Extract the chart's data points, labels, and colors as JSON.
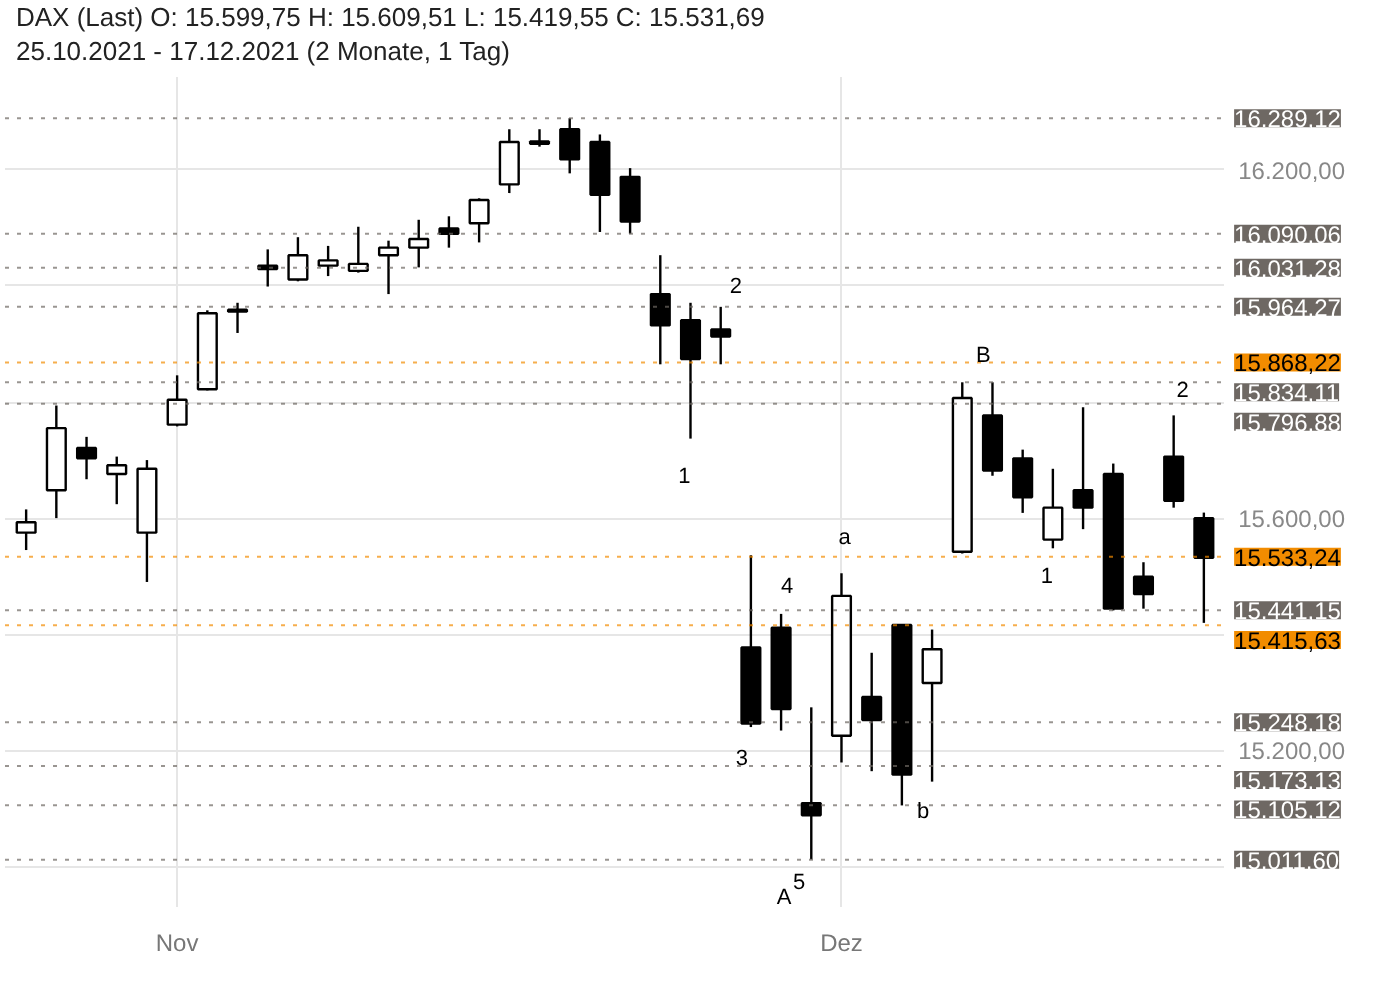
{
  "chart_data": {
    "type": "candlestick",
    "title": "DAX (Last)  O: 15.599,75  H: 15.609,51  L: 15.419,55  C: 15.531,69",
    "subtitle": "25.10.2021 - 17.12.2021   (2 Monate, 1 Tag)",
    "categories": [
      null,
      null,
      null,
      null,
      null,
      "Nov",
      null,
      null,
      null,
      null,
      null,
      null,
      null,
      null,
      null,
      null,
      null,
      null,
      null,
      null,
      null,
      null,
      null,
      null,
      null,
      null,
      null,
      "Dez",
      null,
      null,
      null,
      null,
      null,
      null,
      null,
      null,
      null,
      null,
      null,
      null
    ],
    "ohlc": [
      [
        15575,
        15615,
        15545,
        15593
      ],
      [
        15648,
        15794,
        15600,
        15755
      ],
      [
        15721,
        15740,
        15667,
        15703
      ],
      [
        15676,
        15706,
        15624,
        15691
      ],
      [
        15575,
        15700,
        15490,
        15685
      ],
      [
        15761,
        15846,
        15758,
        15804
      ],
      [
        15822,
        15958,
        15820,
        15953
      ],
      [
        15959,
        15971,
        15919,
        15956
      ],
      [
        16035,
        16063,
        15999,
        16029
      ],
      [
        16011,
        16084,
        16008,
        16053
      ],
      [
        16035,
        16069,
        16017,
        16044
      ],
      [
        16026,
        16102,
        16023,
        16038
      ],
      [
        16053,
        16078,
        15986,
        16066
      ],
      [
        16066,
        16114,
        16032,
        16081
      ],
      [
        16099,
        16120,
        16066,
        16090
      ],
      [
        16108,
        16151,
        16075,
        16148
      ],
      [
        16175,
        16270,
        16160,
        16248
      ],
      [
        16245,
        16270,
        16240,
        16249
      ],
      [
        16270,
        16289,
        16194,
        16218
      ],
      [
        16248,
        16261,
        16093,
        16157
      ],
      [
        16188,
        16203,
        16090,
        16111
      ],
      [
        15986,
        16053,
        15865,
        15932
      ],
      [
        15941,
        15971,
        15737,
        15874
      ],
      [
        15925,
        15964,
        15865,
        15913
      ],
      [
        15377,
        15536,
        15240,
        15246
      ],
      [
        15411,
        15435,
        15234,
        15271
      ],
      [
        15109,
        15274,
        15012,
        15088
      ],
      [
        15225,
        15505,
        15179,
        15466
      ],
      [
        15292,
        15368,
        15164,
        15252
      ],
      [
        15416,
        15416,
        15105,
        15158
      ],
      [
        15316,
        15408,
        15146,
        15374
      ],
      [
        15542,
        15834,
        15539,
        15807
      ],
      [
        15777,
        15834,
        15673,
        15682
      ],
      [
        15703,
        15718,
        15609,
        15636
      ],
      [
        15563,
        15685,
        15548,
        15618
      ],
      [
        15648,
        15791,
        15581,
        15618
      ],
      [
        15676,
        15694,
        15441,
        15444
      ],
      [
        15499,
        15524,
        15444,
        15469
      ],
      [
        15706,
        15777,
        15618,
        15630
      ],
      [
        15599.75,
        15609.51,
        15419.55,
        15531.69
      ]
    ],
    "color": "#000000",
    "ylim": [
      14930,
      16360
    ],
    "yticks": [
      {
        "value": 15000,
        "label": null
      },
      {
        "value": 15200,
        "label": "15.200,00"
      },
      {
        "value": 15400,
        "label": null
      },
      {
        "value": 15600,
        "label": "15.600,00"
      },
      {
        "value": 15800,
        "label": null
      },
      {
        "value": 16000,
        "label": null
      },
      {
        "value": 16200,
        "label": "16.200,00"
      }
    ],
    "grid": true,
    "ref_lines": [
      {
        "axis": "y",
        "value": 16289.12,
        "label": "16.289,12",
        "color": "#6e6863"
      },
      {
        "axis": "y",
        "value": 16090.06,
        "label": "16.090,06",
        "color": "#6e6863"
      },
      {
        "axis": "y",
        "value": 16031.28,
        "label": "16.031,28",
        "color": "#6e6863"
      },
      {
        "axis": "y",
        "value": 15964.27,
        "label": "15.964,27",
        "color": "#6e6863"
      },
      {
        "axis": "y",
        "value": 15834.11,
        "label": "15.834,11",
        "color": "#6e6863"
      },
      {
        "axis": "y",
        "value": 15868.22,
        "label": "15.868,22",
        "color": "#f28c00"
      },
      {
        "axis": "y",
        "value": 15796.88,
        "label": "15.796,88",
        "color": "#6e6863"
      },
      {
        "axis": "y",
        "value": 15533.24,
        "label": "15.533,24",
        "color": "#f28c00"
      },
      {
        "axis": "y",
        "value": 15441.15,
        "label": "15.441,15",
        "color": "#6e6863"
      },
      {
        "axis": "y",
        "value": 15415.63,
        "label": "15.415,63",
        "color": "#f28c00"
      },
      {
        "axis": "y",
        "value": 15248.18,
        "label": "15.248,18",
        "color": "#6e6863"
      },
      {
        "axis": "y",
        "value": 15173.13,
        "label": "15.173,13",
        "color": "#6e6863"
      },
      {
        "axis": "y",
        "value": 15105.12,
        "label": "15.105,12",
        "color": "#6e6863"
      },
      {
        "axis": "y",
        "value": 15011.6,
        "label": "15.011,60",
        "color": "#6e6863"
      }
    ],
    "annotations": [
      "2",
      "1",
      "B",
      "2",
      "1",
      "a",
      "4",
      "3",
      "5",
      "A",
      "b"
    ]
  }
}
